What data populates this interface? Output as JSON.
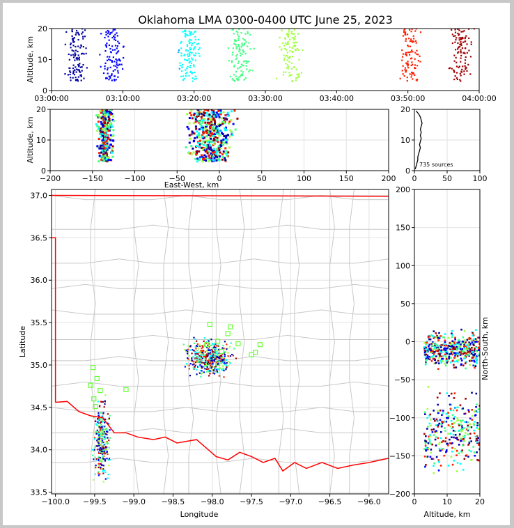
{
  "chart_data": {
    "title": "Oklahoma LMA 0300-0400 UTC June 25, 2023",
    "type": "scatter",
    "color_scale": [
      "#0000a0",
      "#0000ff",
      "#00a0ff",
      "#00ffff",
      "#40ff80",
      "#a0ff40",
      "#ffff00",
      "#ff8000",
      "#ff2000",
      "#a00000"
    ],
    "panels": [
      {
        "id": "time_altitude",
        "ylabel": "Altitude, km",
        "xlabel": "",
        "xlim_minutes": [
          0,
          60
        ],
        "ylim": [
          0,
          20
        ],
        "xticks": [
          0,
          10,
          20,
          30,
          40,
          50,
          60
        ],
        "xtick_labels": [
          "03:00:00",
          "03:10:00",
          "03:20:00",
          "03:30:00",
          "03:40:00",
          "03:50:00",
          "04:00:00"
        ],
        "yticks": [
          0,
          10,
          20
        ],
        "ytick_labels": [
          "0",
          "10",
          "20"
        ],
        "clusters_minutes_center": [
          3.5,
          8.5,
          19.2,
          26.5,
          33.5,
          50.5,
          57.5
        ]
      },
      {
        "id": "ew_altitude",
        "ylabel": "Altitude, km",
        "xlabel": "East-West, km",
        "xlim": [
          -200,
          200
        ],
        "ylim": [
          0,
          20
        ],
        "xticks": [
          -200,
          -150,
          -100,
          -50,
          0,
          50,
          100,
          150,
          200
        ],
        "xtick_labels": [
          "−200",
          "−150",
          "−100",
          "−50",
          "0",
          "50",
          "100",
          "150",
          "200"
        ],
        "yticks": [
          0,
          10,
          20
        ],
        "ytick_labels": [
          "0",
          "10",
          "20"
        ]
      },
      {
        "id": "altitude_histogram",
        "annotation": "735 sources",
        "xlim": [
          0,
          100
        ],
        "ylim": [
          0,
          20
        ],
        "xticks": [
          0,
          50,
          100
        ],
        "xtick_labels": [
          "0",
          "50",
          "100"
        ],
        "yticks": [
          0,
          10,
          20
        ],
        "ytick_labels": [
          "0",
          "10",
          "20"
        ],
        "histogram_counts": [
          1,
          2,
          3,
          4,
          4,
          5,
          6,
          7,
          6,
          7,
          8,
          7,
          8,
          7,
          8,
          9,
          8,
          7,
          5,
          2
        ]
      },
      {
        "id": "plan_view",
        "xlabel": "Longitude",
        "ylabel": "Latitude",
        "xlim": [
          -100.05,
          -95.75
        ],
        "ylim": [
          33.48,
          37.07
        ],
        "xticks": [
          -100.0,
          -99.5,
          -99.0,
          -98.5,
          -98.0,
          -97.5,
          -97.0,
          -96.5,
          -96.0
        ],
        "xtick_labels": [
          "−100.0",
          "−99.5",
          "−99.0",
          "−98.5",
          "−98.0",
          "−97.5",
          "−97.0",
          "−96.5",
          "−96.0"
        ],
        "yticks": [
          33.5,
          34.0,
          34.5,
          35.0,
          35.5,
          36.0,
          36.5,
          37.0
        ],
        "ytick_labels": [
          "33.5",
          "34.0",
          "34.5",
          "35.0",
          "35.5",
          "36.0",
          "36.5",
          "37.0"
        ],
        "state_border_color": "#ff0000",
        "county_line_color": "#c8c8c8",
        "station_marker_color": "#66ff33",
        "stations": [
          {
            "lon": -99.52,
            "lat": 34.97
          },
          {
            "lon": -99.55,
            "lat": 34.76
          },
          {
            "lon": -99.47,
            "lat": 34.84
          },
          {
            "lon": -99.51,
            "lat": 34.6
          },
          {
            "lon": -99.49,
            "lat": 34.51
          },
          {
            "lon": -99.43,
            "lat": 34.7
          },
          {
            "lon": -99.1,
            "lat": 34.71
          },
          {
            "lon": -98.07,
            "lat": 35.24
          },
          {
            "lon": -98.03,
            "lat": 35.48
          },
          {
            "lon": -97.93,
            "lat": 35.28
          },
          {
            "lon": -97.93,
            "lat": 35.02
          },
          {
            "lon": -97.88,
            "lat": 35.16
          },
          {
            "lon": -97.8,
            "lat": 35.37
          },
          {
            "lon": -97.77,
            "lat": 35.45
          },
          {
            "lon": -97.67,
            "lat": 35.25
          },
          {
            "lon": -97.45,
            "lat": 35.15
          },
          {
            "lon": -97.39,
            "lat": 35.24
          },
          {
            "lon": -97.5,
            "lat": 35.12
          }
        ]
      },
      {
        "id": "altitude_ns",
        "xlabel": "Altitude, km",
        "ylabel": "North-South, km",
        "xlim": [
          0,
          20
        ],
        "ylim": [
          -200,
          200
        ],
        "xticks": [
          0,
          10,
          20
        ],
        "xtick_labels": [
          "0",
          "10",
          "20"
        ],
        "yticks": [
          -200,
          -150,
          -100,
          -50,
          0,
          50,
          100,
          150,
          200
        ],
        "ytick_labels": [
          "−200",
          "−150",
          "−100",
          "−50",
          "0",
          "50",
          "100",
          "150",
          "200"
        ]
      }
    ]
  }
}
